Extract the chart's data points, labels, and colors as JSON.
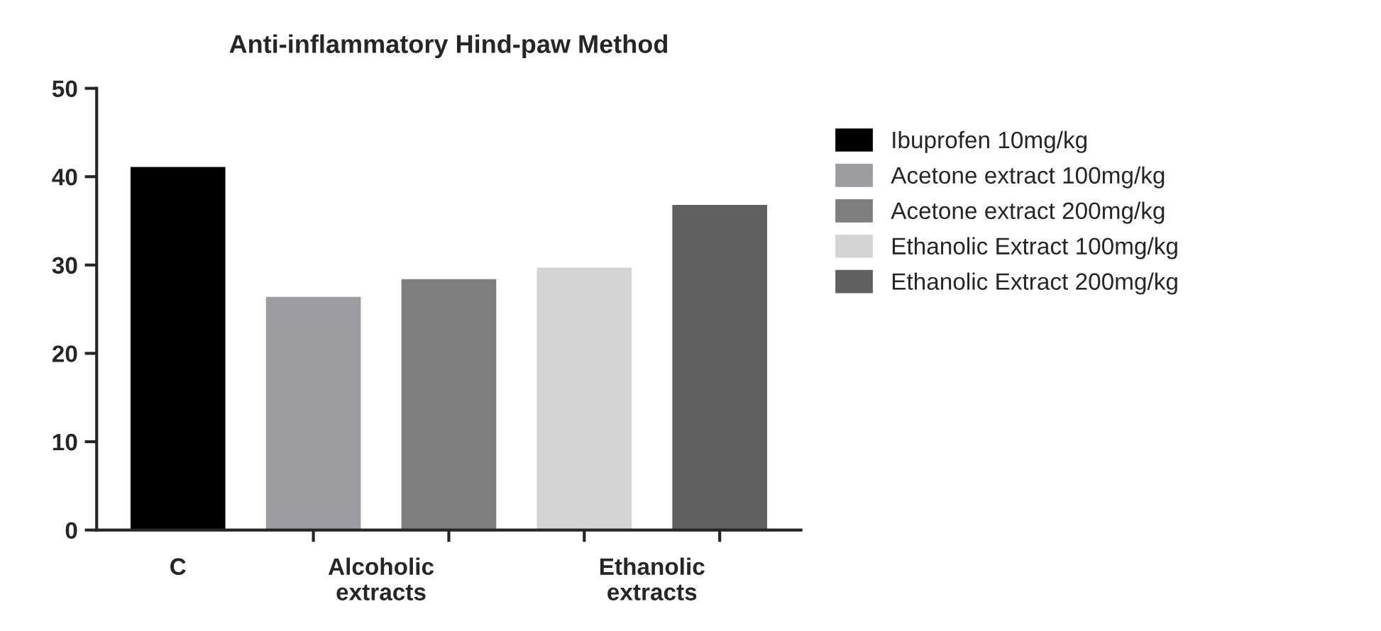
{
  "chart_data": {
    "type": "bar",
    "title": "Anti-inflammatory Hind-paw Method",
    "categories": [
      "C",
      "Alcoholic\nextracts",
      "Ethanolic\nextracts"
    ],
    "series": [
      {
        "name": "Ibuprofen 10mg/kg",
        "color": "#000000",
        "values": [
          41.1,
          null,
          null
        ]
      },
      {
        "name": "Acetone extract 100mg/kg",
        "color": "#9d9ca1",
        "values": [
          null,
          26.4,
          null
        ]
      },
      {
        "name": "Acetone extract 200mg/kg",
        "color": "#7e7e7e",
        "values": [
          null,
          28.4,
          null
        ]
      },
      {
        "name": "Ethanolic Extract 100mg/kg",
        "color": "#d4d4d4",
        "values": [
          null,
          null,
          29.7
        ]
      },
      {
        "name": "Ethanolic Extract 200mg/kg",
        "color": "#606060",
        "values": [
          null,
          null,
          36.8
        ]
      }
    ],
    "ylim": [
      0,
      50
    ],
    "yticks": [
      0,
      10,
      20,
      30,
      40,
      50
    ],
    "grid": false,
    "legend": "right"
  }
}
